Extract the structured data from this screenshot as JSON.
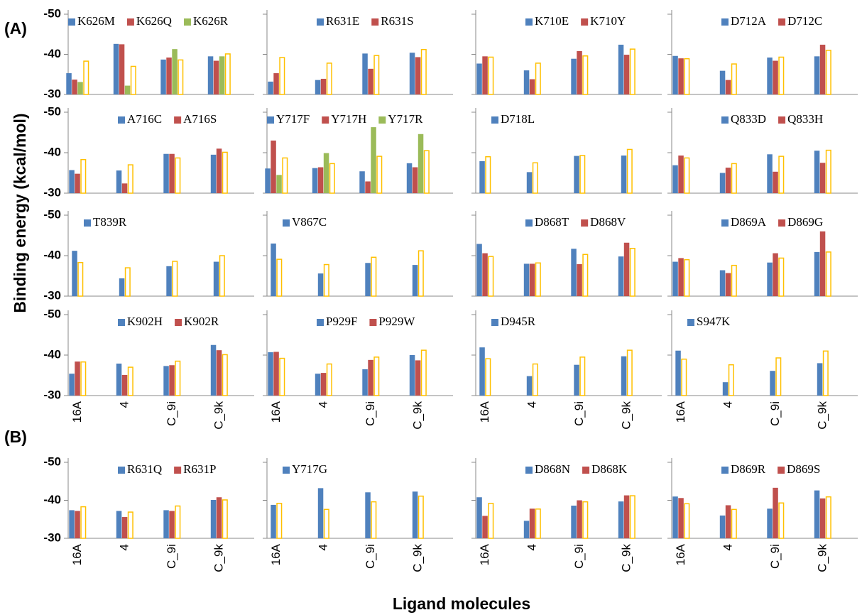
{
  "labels": {
    "panel_a": "(A)",
    "panel_b": "(B)",
    "y_axis": "Binding energy  (kcal/mol)",
    "x_axis": "Ligand molecules"
  },
  "chart_data": [
    {
      "type": "bar",
      "ylim": [
        -30,
        -50
      ],
      "yticks": [
        -50,
        -40,
        -30
      ],
      "series": [
        {
          "name": "K626M",
          "color": "#4f81bd",
          "values": [
            -35.3,
            -42.6,
            -38.7,
            -39.5
          ]
        },
        {
          "name": "K626Q",
          "color": "#c0504d",
          "values": [
            -33.7,
            -42.5,
            -39.2,
            -38.4
          ]
        },
        {
          "name": "K626R",
          "color": "#9bbb59",
          "values": [
            -33.1,
            -32.2,
            -41.3,
            -39.5
          ]
        },
        {
          "color": "#ffc000",
          "hollow": true,
          "values": [
            -38.3,
            -37.0,
            -38.6,
            -40.1
          ]
        }
      ]
    },
    {
      "type": "bar",
      "ylim": [
        -30,
        -50
      ],
      "yticks": [
        -50,
        -40,
        -30
      ],
      "series": [
        {
          "name": "R631E",
          "color": "#4f81bd",
          "values": [
            -33.2,
            -33.6,
            -40.2,
            -40.4
          ]
        },
        {
          "name": "R631S",
          "color": "#c0504d",
          "values": [
            -35.3,
            -33.9,
            -36.4,
            -39.3
          ]
        },
        {
          "color": "#ffc000",
          "hollow": true,
          "values": [
            -39.2,
            -37.8,
            -39.7,
            -41.2
          ]
        }
      ]
    },
    {
      "type": "bar",
      "ylim": [
        -30,
        -50
      ],
      "yticks": [
        -50,
        -40,
        -30
      ],
      "series": [
        {
          "name": "K710E",
          "color": "#4f81bd",
          "values": [
            -37.7,
            -36.0,
            -38.9,
            -42.4
          ]
        },
        {
          "name": "K710Y",
          "color": "#c0504d",
          "values": [
            -39.5,
            -33.8,
            -40.8,
            -39.9
          ]
        },
        {
          "color": "#ffc000",
          "hollow": true,
          "values": [
            -39.3,
            -37.8,
            -39.6,
            -41.3
          ]
        }
      ]
    },
    {
      "type": "bar",
      "ylim": [
        -30,
        -50
      ],
      "yticks": [
        -50,
        -40,
        -30
      ],
      "series": [
        {
          "name": "D712A",
          "color": "#4f81bd",
          "values": [
            -39.6,
            -35.9,
            -39.2,
            -39.5
          ]
        },
        {
          "name": "D712C",
          "color": "#c0504d",
          "values": [
            -39.0,
            -33.6,
            -38.4,
            -42.4
          ]
        },
        {
          "color": "#ffc000",
          "hollow": true,
          "values": [
            -38.9,
            -37.6,
            -39.3,
            -41.0
          ]
        }
      ]
    },
    {
      "type": "bar",
      "ylim": [
        -30,
        -50
      ],
      "yticks": [
        -50,
        -40,
        -30
      ],
      "series": [
        {
          "name": "A716C",
          "color": "#4f81bd",
          "values": [
            -35.7,
            -35.6,
            -39.7,
            -39.5
          ]
        },
        {
          "name": "A716S",
          "color": "#c0504d",
          "values": [
            -34.8,
            -32.4,
            -39.7,
            -41.0
          ]
        },
        {
          "color": "#ffc000",
          "hollow": true,
          "values": [
            -38.3,
            -37.0,
            -38.7,
            -40.1
          ]
        }
      ]
    },
    {
      "type": "bar",
      "ylim": [
        -30,
        -50
      ],
      "yticks": [
        -50,
        -40,
        -30
      ],
      "series": [
        {
          "name": "Y717F",
          "color": "#4f81bd",
          "values": [
            -36.1,
            -36.2,
            -35.4,
            -37.4
          ]
        },
        {
          "name": "Y717H",
          "color": "#c0504d",
          "values": [
            -43.0,
            -36.4,
            -32.9,
            -36.4
          ]
        },
        {
          "name": "Y717R",
          "color": "#9bbb59",
          "values": [
            -34.5,
            -39.9,
            -46.3,
            -44.6
          ]
        },
        {
          "color": "#ffc000",
          "hollow": true,
          "values": [
            -38.7,
            -37.3,
            -39.1,
            -40.5
          ]
        }
      ]
    },
    {
      "type": "bar",
      "ylim": [
        -30,
        -50
      ],
      "yticks": [
        -50,
        -40,
        -30
      ],
      "series": [
        {
          "name": "D718L",
          "color": "#4f81bd",
          "values": [
            -37.9,
            -35.2,
            -39.2,
            -39.3
          ]
        },
        {
          "color": "#ffc000",
          "hollow": true,
          "values": [
            -39.0,
            -37.5,
            -39.3,
            -40.8
          ]
        }
      ]
    },
    {
      "type": "bar",
      "ylim": [
        -30,
        -50
      ],
      "yticks": [
        -50,
        -40,
        -30
      ],
      "series": [
        {
          "name": "Q833D",
          "color": "#4f81bd",
          "values": [
            -36.9,
            -35.0,
            -39.6,
            -40.5
          ]
        },
        {
          "name": "Q833H",
          "color": "#c0504d",
          "values": [
            -39.3,
            -36.3,
            -35.3,
            -37.5
          ]
        },
        {
          "color": "#ffc000",
          "hollow": true,
          "values": [
            -38.7,
            -37.3,
            -39.1,
            -40.6
          ]
        }
      ]
    },
    {
      "type": "bar",
      "ylim": [
        -30,
        -50
      ],
      "yticks": [
        -50,
        -40,
        -30
      ],
      "series": [
        {
          "name": "T839R",
          "color": "#4f81bd",
          "values": [
            -41.2,
            -34.4,
            -37.4,
            -38.5
          ]
        },
        {
          "color": "#ffc000",
          "hollow": true,
          "values": [
            -38.3,
            -37.0,
            -38.6,
            -40.0
          ]
        }
      ]
    },
    {
      "type": "bar",
      "ylim": [
        -30,
        -50
      ],
      "yticks": [
        -50,
        -40,
        -30
      ],
      "series": [
        {
          "name": "V867C",
          "color": "#4f81bd",
          "values": [
            -43.0,
            -35.6,
            -38.2,
            -37.7
          ]
        },
        {
          "color": "#ffc000",
          "hollow": true,
          "values": [
            -39.1,
            -37.8,
            -39.6,
            -41.2
          ]
        }
      ]
    },
    {
      "type": "bar",
      "ylim": [
        -30,
        -50
      ],
      "yticks": [
        -50,
        -40,
        -30
      ],
      "series": [
        {
          "name": "D868T",
          "color": "#4f81bd",
          "values": [
            -42.9,
            -38.0,
            -41.7,
            -39.8
          ]
        },
        {
          "name": "D868V",
          "color": "#c0504d",
          "values": [
            -40.6,
            -38.0,
            -37.9,
            -43.2
          ]
        },
        {
          "color": "#ffc000",
          "hollow": true,
          "values": [
            -39.8,
            -38.2,
            -40.3,
            -41.8
          ]
        }
      ]
    },
    {
      "type": "bar",
      "ylim": [
        -30,
        -50
      ],
      "yticks": [
        -50,
        -40,
        -30
      ],
      "series": [
        {
          "name": "D869A",
          "color": "#4f81bd",
          "values": [
            -38.5,
            -36.4,
            -38.3,
            -40.9
          ]
        },
        {
          "name": "D869G",
          "color": "#c0504d",
          "values": [
            -39.4,
            -35.7,
            -40.6,
            -46.0
          ]
        },
        {
          "color": "#ffc000",
          "hollow": true,
          "values": [
            -39.0,
            -37.6,
            -39.4,
            -40.9
          ]
        }
      ]
    },
    {
      "type": "bar",
      "categories": [
        "16A",
        "4",
        "C_9i",
        "C_9k"
      ],
      "ylim": [
        -30,
        -50
      ],
      "yticks": [
        -50,
        -40,
        -30
      ],
      "series": [
        {
          "name": "K902H",
          "color": "#4f81bd",
          "values": [
            -35.4,
            -37.9,
            -37.3,
            -42.5
          ]
        },
        {
          "name": "K902R",
          "color": "#c0504d",
          "values": [
            -38.4,
            -35.1,
            -37.5,
            -41.2
          ]
        },
        {
          "color": "#ffc000",
          "hollow": true,
          "values": [
            -38.3,
            -37.0,
            -38.5,
            -40.1
          ]
        }
      ]
    },
    {
      "type": "bar",
      "categories": [
        "16A",
        "4",
        "C_9i",
        "C_9k"
      ],
      "ylim": [
        -30,
        -50
      ],
      "yticks": [
        -50,
        -40,
        -30
      ],
      "series": [
        {
          "name": "P929F",
          "color": "#4f81bd",
          "values": [
            -40.7,
            -35.4,
            -36.5,
            -40.0
          ]
        },
        {
          "name": "P929W",
          "color": "#c0504d",
          "values": [
            -40.8,
            -35.6,
            -38.8,
            -38.7
          ]
        },
        {
          "color": "#ffc000",
          "hollow": true,
          "values": [
            -39.2,
            -37.8,
            -39.5,
            -41.2
          ]
        }
      ]
    },
    {
      "type": "bar",
      "categories": [
        "16A",
        "4",
        "C_9i",
        "C_9k"
      ],
      "ylim": [
        -30,
        -50
      ],
      "yticks": [
        -50,
        -40,
        -30
      ],
      "series": [
        {
          "name": "D945R",
          "color": "#4f81bd",
          "values": [
            -41.9,
            -34.8,
            -37.6,
            -39.7
          ]
        },
        {
          "color": "#ffc000",
          "hollow": true,
          "values": [
            -39.1,
            -37.8,
            -39.5,
            -41.2
          ]
        }
      ]
    },
    {
      "type": "bar",
      "categories": [
        "16A",
        "4",
        "C_9i",
        "C_9k"
      ],
      "ylim": [
        -30,
        -50
      ],
      "yticks": [
        -50,
        -40,
        -30
      ],
      "series": [
        {
          "name": "S947K",
          "color": "#4f81bd",
          "values": [
            -41.1,
            -33.3,
            -36.1,
            -38.0
          ]
        },
        {
          "color": "#ffc000",
          "hollow": true,
          "values": [
            -39.0,
            -37.6,
            -39.3,
            -41.0
          ]
        }
      ]
    },
    {
      "type": "bar",
      "categories": [
        "16A",
        "4",
        "C_9i",
        "C_9k"
      ],
      "ylim": [
        -30,
        -50
      ],
      "yticks": [
        -50,
        -40,
        -30
      ],
      "series": [
        {
          "name": "R631Q",
          "color": "#4f81bd",
          "values": [
            -37.4,
            -37.2,
            -37.4,
            -40.1
          ]
        },
        {
          "name": "R631P",
          "color": "#c0504d",
          "values": [
            -37.2,
            -35.6,
            -37.2,
            -40.8
          ]
        },
        {
          "color": "#ffc000",
          "hollow": true,
          "values": [
            -38.3,
            -36.9,
            -38.5,
            -40.1
          ]
        }
      ]
    },
    {
      "type": "bar",
      "categories": [
        "16A",
        "4",
        "C_9i",
        "C_9k"
      ],
      "ylim": [
        -30,
        -50
      ],
      "yticks": [
        -50,
        -40,
        -30
      ],
      "series": [
        {
          "name": "Y717G",
          "color": "#4f81bd",
          "values": [
            -38.8,
            -43.2,
            -42.1,
            -42.3
          ]
        },
        {
          "color": "#ffc000",
          "hollow": true,
          "values": [
            -39.2,
            -37.6,
            -39.6,
            -41.1
          ]
        }
      ]
    },
    {
      "type": "bar",
      "categories": [
        "16A",
        "4",
        "C_9i",
        "C_9k"
      ],
      "ylim": [
        -30,
        -50
      ],
      "yticks": [
        -50,
        -40,
        -30
      ],
      "series": [
        {
          "name": "D868N",
          "color": "#4f81bd",
          "values": [
            -40.8,
            -34.6,
            -38.6,
            -39.7
          ]
        },
        {
          "name": "D868K",
          "color": "#c0504d",
          "values": [
            -35.9,
            -37.8,
            -40.0,
            -41.3
          ]
        },
        {
          "color": "#ffc000",
          "hollow": true,
          "values": [
            -39.2,
            -37.7,
            -39.6,
            -41.2
          ]
        }
      ]
    },
    {
      "type": "bar",
      "categories": [
        "16A",
        "4",
        "C_9i",
        "C_9k"
      ],
      "ylim": [
        -30,
        -50
      ],
      "yticks": [
        -50,
        -40,
        -30
      ],
      "series": [
        {
          "name": "D869R",
          "color": "#4f81bd",
          "values": [
            -41.0,
            -36.0,
            -37.8,
            -42.6
          ]
        },
        {
          "name": "D869S",
          "color": "#c0504d",
          "values": [
            -40.6,
            -38.7,
            -43.3,
            -40.5
          ]
        },
        {
          "color": "#ffc000",
          "hollow": true,
          "values": [
            -39.1,
            -37.6,
            -39.3,
            -40.9
          ]
        }
      ]
    }
  ]
}
